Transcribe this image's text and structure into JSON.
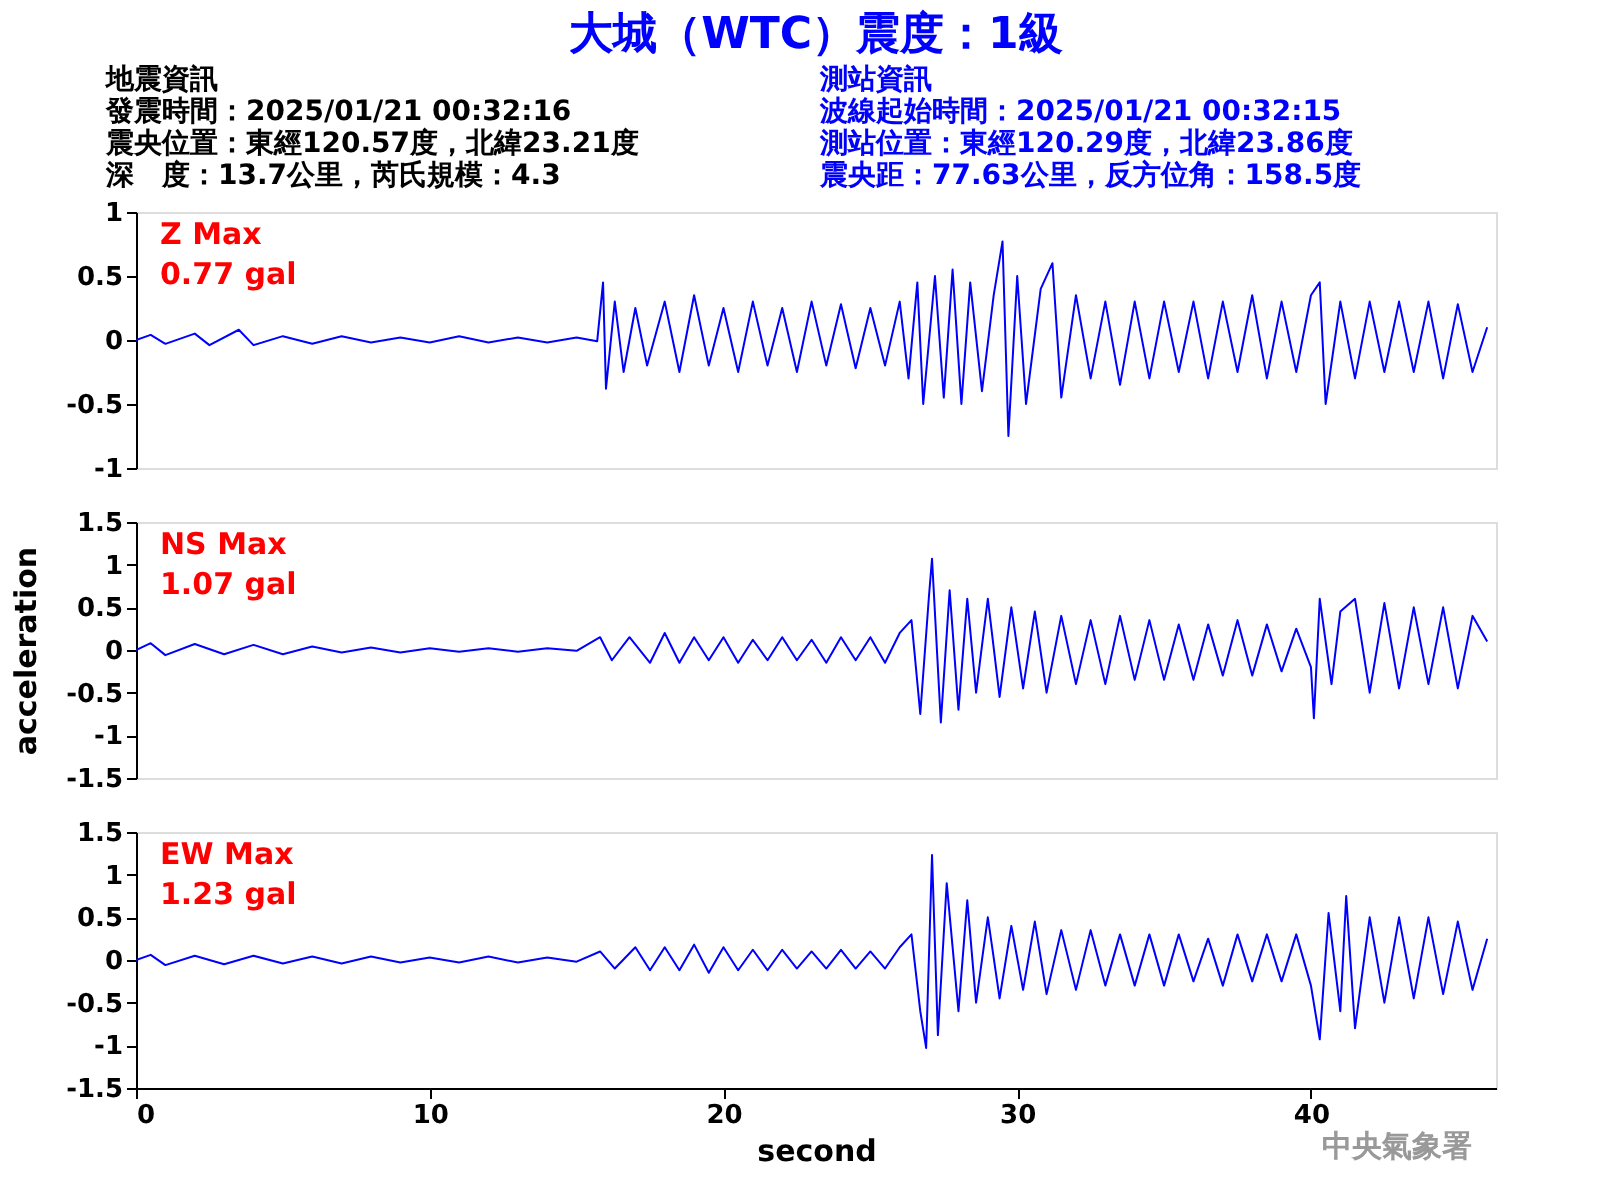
{
  "chart_data": [
    {
      "type": "line",
      "title": "大城（WTC）震度：1級",
      "annotations": [
        "Z Max",
        "0.77 gal",
        "地震資訊",
        "發震時間：2025/01/21 00:32:16",
        "震央位置：東經120.57度，北緯23.21度",
        "深　度：13.7公里，芮氏規模：4.3",
        "測站資訊",
        "波線起始時間：2025/01/21 00:32:15",
        "測站位置：東經120.29度，北緯23.86度",
        "震央距：77.63公里，反方位角：158.5度"
      ],
      "x": [
        0,
        0.5,
        1,
        2,
        2.5,
        3.5,
        4,
        5,
        6,
        7,
        8,
        9,
        10,
        11,
        12,
        13,
        14,
        15,
        15.7,
        15.9,
        16.0,
        16.3,
        16.6,
        17,
        17.4,
        18,
        18.5,
        19,
        19.5,
        20,
        20.5,
        21,
        21.5,
        22,
        22.5,
        23,
        23.5,
        24,
        24.5,
        25,
        25.5,
        26,
        26.3,
        26.6,
        26.8,
        27.2,
        27.5,
        27.8,
        28.1,
        28.4,
        28.8,
        29.2,
        29.5,
        29.7,
        30,
        30.3,
        30.8,
        31.2,
        31.5,
        32,
        32.5,
        33,
        33.5,
        34,
        34.5,
        35,
        35.5,
        36,
        36.5,
        37,
        37.5,
        38,
        38.5,
        39,
        39.5,
        40,
        40.3,
        40.5,
        41,
        41.5,
        42,
        42.5,
        43,
        43.5,
        44,
        44.5,
        45,
        45.5,
        46
      ],
      "series": [
        {
          "color": "#0000ff",
          "values": [
            0,
            0.04,
            -0.03,
            0.05,
            -0.04,
            0.08,
            -0.04,
            0.03,
            -0.03,
            0.03,
            -0.02,
            0.02,
            -0.02,
            0.03,
            -0.02,
            0.02,
            -0.02,
            0.02,
            -0.01,
            0.45,
            -0.38,
            0.3,
            -0.25,
            0.25,
            -0.2,
            0.3,
            -0.25,
            0.35,
            -0.2,
            0.25,
            -0.25,
            0.3,
            -0.2,
            0.25,
            -0.25,
            0.3,
            -0.2,
            0.28,
            -0.22,
            0.25,
            -0.2,
            0.3,
            -0.3,
            0.45,
            -0.5,
            0.5,
            -0.45,
            0.55,
            -0.5,
            0.45,
            -0.4,
            0.35,
            0.77,
            -0.75,
            0.5,
            -0.5,
            0.4,
            0.6,
            -0.45,
            0.35,
            -0.3,
            0.3,
            -0.35,
            0.3,
            -0.3,
            0.3,
            -0.25,
            0.3,
            -0.3,
            0.3,
            -0.25,
            0.35,
            -0.3,
            0.3,
            -0.25,
            0.35,
            0.45,
            -0.5,
            0.3,
            -0.3,
            0.3,
            -0.25,
            0.3,
            -0.25,
            0.3,
            -0.3,
            0.28,
            -0.25,
            0.1
          ]
        }
      ],
      "xlim": [
        0,
        46.3
      ],
      "ylim": [
        -1,
        1
      ],
      "yticks": [
        -1,
        -0.5,
        0,
        0.5,
        1
      ],
      "tick_labels": "y",
      "grid": false
    },
    {
      "type": "line",
      "ylabel": "acceleration",
      "annotations": [
        "NS Max",
        "1.07 gal"
      ],
      "x": [
        0,
        0.5,
        1,
        2,
        3,
        4,
        5,
        6,
        7,
        8,
        9,
        10,
        11,
        12,
        13,
        14,
        15,
        15.8,
        16.2,
        16.8,
        17.5,
        18,
        18.5,
        19,
        19.5,
        20,
        20.5,
        21,
        21.5,
        22,
        22.5,
        23,
        23.5,
        24,
        24.5,
        25,
        25.5,
        26,
        26.4,
        26.7,
        27.0,
        27.1,
        27.4,
        27.7,
        28,
        28.3,
        28.6,
        29,
        29.4,
        29.8,
        30.2,
        30.6,
        31,
        31.5,
        32,
        32.5,
        33,
        33.5,
        34,
        34.5,
        35,
        35.5,
        36,
        36.5,
        37,
        37.5,
        38,
        38.5,
        39,
        39.5,
        40,
        40.1,
        40.3,
        40.7,
        41,
        41.5,
        42,
        42.5,
        43,
        43.5,
        44,
        44.5,
        45,
        45.5,
        46
      ],
      "series": [
        {
          "color": "#0000ff",
          "values": [
            0,
            0.08,
            -0.06,
            0.07,
            -0.05,
            0.06,
            -0.05,
            0.04,
            -0.03,
            0.03,
            -0.03,
            0.02,
            -0.02,
            0.02,
            -0.02,
            0.02,
            -0.01,
            0.15,
            -0.12,
            0.15,
            -0.15,
            0.2,
            -0.15,
            0.15,
            -0.12,
            0.15,
            -0.15,
            0.12,
            -0.12,
            0.15,
            -0.12,
            0.12,
            -0.15,
            0.15,
            -0.12,
            0.15,
            -0.15,
            0.2,
            0.35,
            -0.75,
            0.65,
            1.07,
            -0.85,
            0.7,
            -0.7,
            0.6,
            -0.5,
            0.6,
            -0.55,
            0.5,
            -0.45,
            0.45,
            -0.5,
            0.4,
            -0.4,
            0.35,
            -0.4,
            0.4,
            -0.35,
            0.35,
            -0.35,
            0.3,
            -0.35,
            0.3,
            -0.3,
            0.35,
            -0.3,
            0.3,
            -0.25,
            0.25,
            -0.2,
            -0.8,
            0.6,
            -0.4,
            0.45,
            0.6,
            -0.5,
            0.55,
            -0.45,
            0.5,
            -0.4,
            0.5,
            -0.45,
            0.4,
            0.1
          ]
        }
      ],
      "xlim": [
        0,
        46.3
      ],
      "ylim": [
        -1.5,
        1.5
      ],
      "yticks": [
        -1.5,
        -1,
        -0.5,
        0,
        0.5,
        1,
        1.5
      ],
      "tick_labels": "y",
      "grid": false
    },
    {
      "type": "line",
      "xlabel": "second",
      "annotations": [
        "EW Max",
        "1.23 gal",
        "中央氣象署"
      ],
      "x": [
        0,
        0.5,
        1,
        2,
        3,
        4,
        5,
        6,
        7,
        8,
        9,
        10,
        11,
        12,
        13,
        14,
        15,
        15.8,
        16.3,
        17,
        17.5,
        18,
        18.5,
        19,
        19.5,
        20,
        20.5,
        21,
        21.5,
        22,
        22.5,
        23,
        23.5,
        24,
        24.5,
        25,
        25.5,
        26,
        26.4,
        26.7,
        26.9,
        27.1,
        27.3,
        27.6,
        28,
        28.3,
        28.6,
        29,
        29.4,
        29.8,
        30.2,
        30.6,
        31,
        31.5,
        32,
        32.5,
        33,
        33.5,
        34,
        34.5,
        35,
        35.5,
        36,
        36.5,
        37,
        37.5,
        38,
        38.5,
        39,
        39.5,
        40,
        40.3,
        40.6,
        41,
        41.2,
        41.5,
        42,
        42.5,
        43,
        43.5,
        44,
        44.5,
        45,
        45.5,
        46
      ],
      "series": [
        {
          "color": "#0000ff",
          "values": [
            0,
            0.06,
            -0.06,
            0.05,
            -0.05,
            0.05,
            -0.04,
            0.04,
            -0.04,
            0.04,
            -0.03,
            0.03,
            -0.03,
            0.04,
            -0.03,
            0.03,
            -0.02,
            0.1,
            -0.1,
            0.15,
            -0.12,
            0.15,
            -0.12,
            0.18,
            -0.15,
            0.15,
            -0.12,
            0.12,
            -0.12,
            0.12,
            -0.1,
            0.1,
            -0.1,
            0.12,
            -0.1,
            0.1,
            -0.1,
            0.15,
            0.3,
            -0.6,
            -1.03,
            1.23,
            -0.88,
            0.9,
            -0.6,
            0.7,
            -0.5,
            0.5,
            -0.45,
            0.4,
            -0.35,
            0.45,
            -0.4,
            0.35,
            -0.35,
            0.35,
            -0.3,
            0.3,
            -0.3,
            0.3,
            -0.3,
            0.3,
            -0.25,
            0.25,
            -0.3,
            0.3,
            -0.25,
            0.3,
            -0.25,
            0.3,
            -0.3,
            -0.93,
            0.55,
            -0.6,
            0.75,
            -0.8,
            0.5,
            -0.5,
            0.5,
            -0.45,
            0.5,
            -0.4,
            0.45,
            -0.35,
            0.25
          ]
        }
      ],
      "xlim": [
        0,
        46.3
      ],
      "xticks": [
        0,
        10,
        20,
        30,
        40
      ],
      "ylim": [
        -1.5,
        1.5
      ],
      "yticks": [
        -1.5,
        -1,
        -0.5,
        0,
        0.5,
        1,
        1.5
      ],
      "grid": false
    }
  ]
}
